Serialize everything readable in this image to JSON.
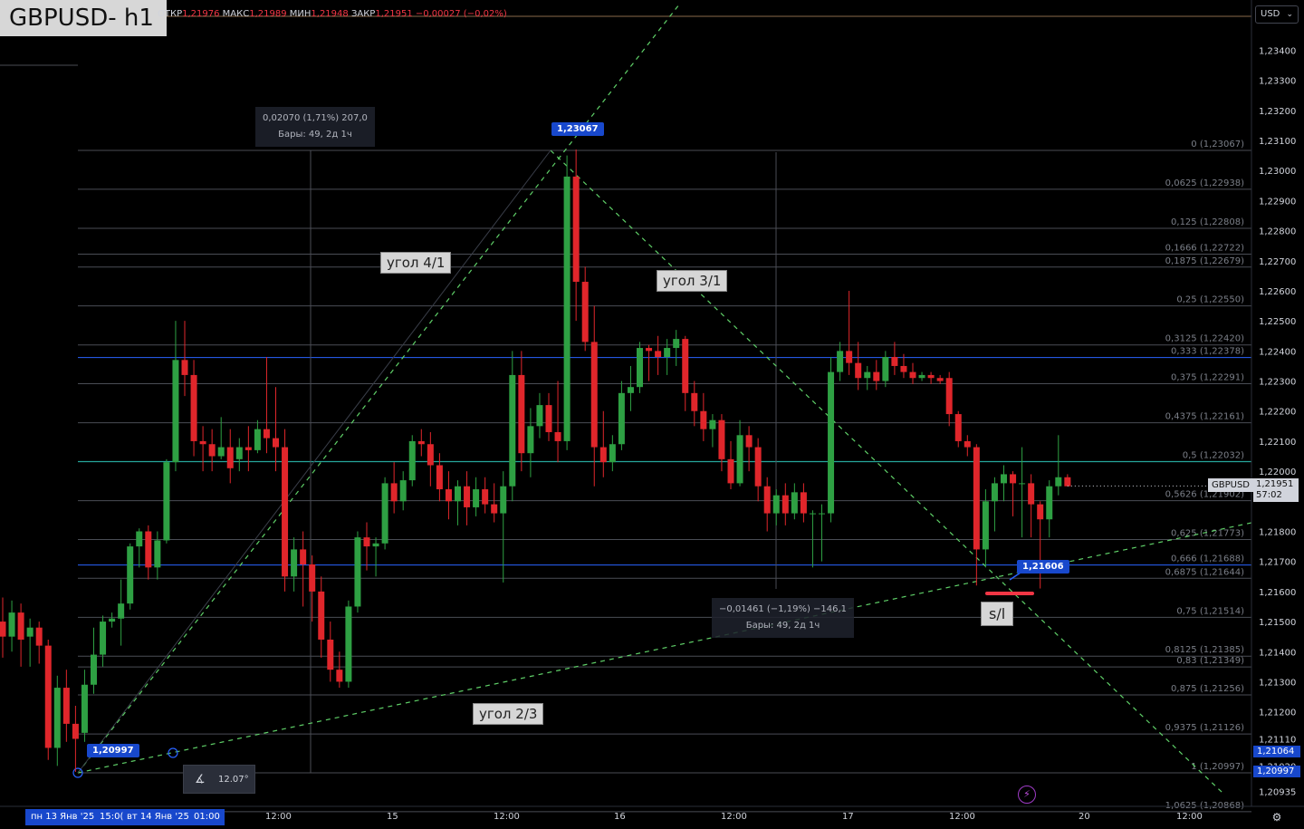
{
  "header": {
    "symbol_title": "GBPUSD- h1",
    "ohlc": [
      {
        "k": "ОТКР",
        "v": "1,21976"
      },
      {
        "k": "МАКС",
        "v": "1,21989"
      },
      {
        "k": "МИН",
        "v": "1,21948"
      },
      {
        "k": "ЗАКР",
        "v": "1,21951"
      },
      {
        "k": "",
        "v": "−0,00027 (−0,02%)"
      }
    ],
    "currency": "USD"
  },
  "price_axis_labels": [
    "1,23400",
    "1,23300",
    "1,23200",
    "1,23100",
    "1,23000",
    "1,22900",
    "1,22800",
    "1,22700",
    "1,22600",
    "1,22500",
    "1,22400",
    "1,22300",
    "1,22200",
    "1,22100",
    "1,22000",
    "1,21800",
    "1,21700",
    "1,21600",
    "1,21500",
    "1,21400",
    "1,21300",
    "1,21200",
    "1,21110",
    "1,21020",
    "1,20935"
  ],
  "fib_levels": [
    {
      "label": "0 (1,23067)",
      "price": 1.23067
    },
    {
      "label": "0,0625 (1,22938)",
      "price": 1.22938
    },
    {
      "label": "0,125 (1,22808)",
      "price": 1.22808
    },
    {
      "label": "0,1666 (1,22722)",
      "price": 1.22722
    },
    {
      "label": "0,1875 (1,22679)",
      "price": 1.22679
    },
    {
      "label": "0,25 (1,22550)",
      "price": 1.2255
    },
    {
      "label": "0,3125 (1,22420)",
      "price": 1.2242
    },
    {
      "label": "0,333 (1,22378)",
      "price": 1.22378
    },
    {
      "label": "0,375 (1,22291)",
      "price": 1.22291
    },
    {
      "label": "0,4375 (1,22161)",
      "price": 1.22161
    },
    {
      "label": "0,5 (1,22032)",
      "price": 1.22032
    },
    {
      "label": "0,5626 (1,21902)",
      "price": 1.21902
    },
    {
      "label": "0,625 (1,21773)",
      "price": 1.21773
    },
    {
      "label": "0,666 (1,21688)",
      "price": 1.21688
    },
    {
      "label": "0,6875 (1,21644)",
      "price": 1.21644
    },
    {
      "label": "0,75 (1,21514)",
      "price": 1.21514
    },
    {
      "label": "0,8125 (1,21385)",
      "price": 1.21385
    },
    {
      "label": "0,83 (1,21349)",
      "price": 1.21349
    },
    {
      "label": "0,875 (1,21256)",
      "price": 1.21256
    },
    {
      "label": "0,9375 (1,21126)",
      "price": 1.21126
    },
    {
      "label": "1 (1,20997)",
      "price": 1.20997
    },
    {
      "label": "1,0625 (1,20868)",
      "price": 1.20868
    }
  ],
  "annotations": {
    "angle_4_1": "угол 4/1",
    "angle_3_1": "угол 3/1",
    "angle_2_3": "угол 2/3",
    "sl": "s/l",
    "measure_up_line1": "0,02070 (1,71%) 207,0",
    "measure_up_line2": "Бары: 49, 2д 1ч",
    "measure_down_line1": "−0,01461 (−1,19%) −146,1",
    "measure_down_line2": "Бары: 49, 2д 1ч",
    "flag_high": "1,23067",
    "flag_low": "1,20997",
    "flag_mid": "1,21606",
    "angle_tool_value": "12.07°"
  },
  "axis_flags": {
    "upper": "1,21064",
    "lower": "1,20997"
  },
  "current_price": {
    "symbol": "GBPUSD",
    "price": "1,21951",
    "countdown": "57:02"
  },
  "time_axis": {
    "range_start": "пн 13 Янв '25",
    "range_start_time": "15:0(",
    "range_end": "вт 14 Янв '25",
    "range_end_time": "01:00",
    "ticks": [
      "12:00",
      "15",
      "12:00",
      "16",
      "12:00",
      "17",
      "12:00",
      "20",
      "12:00"
    ]
  },
  "colors": {
    "up": "#2ea043",
    "down": "#e0262b",
    "fib_line": "#5d606b",
    "fib_mid": "#26a69a",
    "trend": "#4caf50",
    "flag": "#1848cc"
  },
  "chart_data": {
    "type": "candlestick",
    "timeframe": "h1",
    "symbol": "GBPUSD",
    "ylim": [
      1.2088,
      1.2345
    ],
    "candles": [
      {
        "o": 1.215,
        "h": 1.2158,
        "c": 1.2145,
        "l": 1.2138
      },
      {
        "o": 1.2145,
        "h": 1.2157,
        "c": 1.2153,
        "l": 1.214
      },
      {
        "o": 1.2153,
        "h": 1.2156,
        "c": 1.2144,
        "l": 1.2135
      },
      {
        "o": 1.2145,
        "h": 1.2151,
        "c": 1.2148,
        "l": 1.2135
      },
      {
        "o": 1.2148,
        "h": 1.215,
        "c": 1.2142,
        "l": 1.2136
      },
      {
        "o": 1.2142,
        "h": 1.2144,
        "c": 1.2108,
        "l": 1.2104
      },
      {
        "o": 1.2108,
        "h": 1.2132,
        "c": 1.2128,
        "l": 1.2102
      },
      {
        "o": 1.2128,
        "h": 1.2134,
        "c": 1.2116,
        "l": 1.211
      },
      {
        "o": 1.2116,
        "h": 1.2122,
        "c": 1.2111,
        "l": 1.21
      },
      {
        "o": 1.2113,
        "h": 1.2134,
        "c": 1.2129,
        "l": 1.211
      },
      {
        "o": 1.2129,
        "h": 1.2148,
        "c": 1.2139,
        "l": 1.2126
      },
      {
        "o": 1.2139,
        "h": 1.2152,
        "c": 1.215,
        "l": 1.2135
      },
      {
        "o": 1.215,
        "h": 1.2153,
        "c": 1.2151,
        "l": 1.2148
      },
      {
        "o": 1.2151,
        "h": 1.2164,
        "c": 1.2156,
        "l": 1.2142
      },
      {
        "o": 1.2156,
        "h": 1.2176,
        "c": 1.2175,
        "l": 1.2154
      },
      {
        "o": 1.2175,
        "h": 1.2181,
        "c": 1.218,
        "l": 1.2168
      },
      {
        "o": 1.218,
        "h": 1.2182,
        "c": 1.2168,
        "l": 1.2164
      },
      {
        "o": 1.2168,
        "h": 1.218,
        "c": 1.2177,
        "l": 1.2164
      },
      {
        "o": 1.2177,
        "h": 1.2204,
        "c": 1.2203,
        "l": 1.2176
      },
      {
        "o": 1.2203,
        "h": 1.225,
        "c": 1.2237,
        "l": 1.22
      },
      {
        "o": 1.2237,
        "h": 1.225,
        "c": 1.2232,
        "l": 1.2225
      },
      {
        "o": 1.2232,
        "h": 1.2237,
        "c": 1.221,
        "l": 1.2205
      },
      {
        "o": 1.221,
        "h": 1.2215,
        "c": 1.2209,
        "l": 1.22
      },
      {
        "o": 1.2209,
        "h": 1.2214,
        "c": 1.2205,
        "l": 1.22
      },
      {
        "o": 1.2205,
        "h": 1.2218,
        "c": 1.2208,
        "l": 1.2204
      },
      {
        "o": 1.2208,
        "h": 1.2214,
        "c": 1.2201,
        "l": 1.2196
      },
      {
        "o": 1.2204,
        "h": 1.2211,
        "c": 1.2208,
        "l": 1.22
      },
      {
        "o": 1.2208,
        "h": 1.2215,
        "c": 1.2207,
        "l": 1.22
      },
      {
        "o": 1.2207,
        "h": 1.2217,
        "c": 1.2214,
        "l": 1.2206
      },
      {
        "o": 1.2214,
        "h": 1.2238,
        "c": 1.2211,
        "l": 1.2206
      },
      {
        "o": 1.2211,
        "h": 1.2228,
        "c": 1.2208,
        "l": 1.22
      },
      {
        "o": 1.2208,
        "h": 1.2214,
        "c": 1.2165,
        "l": 1.216
      },
      {
        "o": 1.2165,
        "h": 1.2178,
        "c": 1.2174,
        "l": 1.216
      },
      {
        "o": 1.2174,
        "h": 1.218,
        "c": 1.2169,
        "l": 1.2155
      },
      {
        "o": 1.2169,
        "h": 1.2172,
        "c": 1.216,
        "l": 1.215
      },
      {
        "o": 1.216,
        "h": 1.2165,
        "c": 1.2144,
        "l": 1.2138
      },
      {
        "o": 1.2144,
        "h": 1.215,
        "c": 1.2134,
        "l": 1.213
      },
      {
        "o": 1.2134,
        "h": 1.214,
        "c": 1.213,
        "l": 1.2128
      },
      {
        "o": 1.213,
        "h": 1.2157,
        "c": 1.2155,
        "l": 1.2128
      },
      {
        "o": 1.2155,
        "h": 1.218,
        "c": 1.2178,
        "l": 1.2153
      },
      {
        "o": 1.2178,
        "h": 1.2183,
        "c": 1.2175,
        "l": 1.2167
      },
      {
        "o": 1.2175,
        "h": 1.2178,
        "c": 1.2176,
        "l": 1.2165
      },
      {
        "o": 1.2176,
        "h": 1.2198,
        "c": 1.2196,
        "l": 1.2174
      },
      {
        "o": 1.2196,
        "h": 1.2203,
        "c": 1.219,
        "l": 1.2186
      },
      {
        "o": 1.219,
        "h": 1.22,
        "c": 1.2197,
        "l": 1.2187
      },
      {
        "o": 1.2197,
        "h": 1.2212,
        "c": 1.221,
        "l": 1.2195
      },
      {
        "o": 1.221,
        "h": 1.2214,
        "c": 1.2209,
        "l": 1.2205
      },
      {
        "o": 1.2209,
        "h": 1.2213,
        "c": 1.2202,
        "l": 1.2195
      },
      {
        "o": 1.2202,
        "h": 1.2206,
        "c": 1.2194,
        "l": 1.219
      },
      {
        "o": 1.2194,
        "h": 1.22,
        "c": 1.219,
        "l": 1.2184
      },
      {
        "o": 1.219,
        "h": 1.2197,
        "c": 1.2195,
        "l": 1.2182
      },
      {
        "o": 1.2195,
        "h": 1.22,
        "c": 1.2188,
        "l": 1.2182
      },
      {
        "o": 1.2188,
        "h": 1.2198,
        "c": 1.2194,
        "l": 1.2185
      },
      {
        "o": 1.2194,
        "h": 1.2198,
        "c": 1.2189,
        "l": 1.2186
      },
      {
        "o": 1.2189,
        "h": 1.2196,
        "c": 1.2186,
        "l": 1.2183
      },
      {
        "o": 1.2186,
        "h": 1.22,
        "c": 1.2195,
        "l": 1.2163
      },
      {
        "o": 1.2195,
        "h": 1.224,
        "c": 1.2232,
        "l": 1.219
      },
      {
        "o": 1.2232,
        "h": 1.224,
        "c": 1.2206,
        "l": 1.22
      },
      {
        "o": 1.2206,
        "h": 1.2221,
        "c": 1.2215,
        "l": 1.2198
      },
      {
        "o": 1.2215,
        "h": 1.2226,
        "c": 1.2222,
        "l": 1.2211
      },
      {
        "o": 1.2222,
        "h": 1.2226,
        "c": 1.2213,
        "l": 1.221
      },
      {
        "o": 1.2213,
        "h": 1.223,
        "c": 1.221,
        "l": 1.2203
      },
      {
        "o": 1.221,
        "h": 1.2305,
        "c": 1.2298,
        "l": 1.2207
      },
      {
        "o": 1.2298,
        "h": 1.2307,
        "c": 1.2263,
        "l": 1.225
      },
      {
        "o": 1.2263,
        "h": 1.2268,
        "c": 1.2243,
        "l": 1.224
      },
      {
        "o": 1.2243,
        "h": 1.2255,
        "c": 1.2208,
        "l": 1.2195
      },
      {
        "o": 1.2208,
        "h": 1.222,
        "c": 1.2203,
        "l": 1.2198
      },
      {
        "o": 1.2203,
        "h": 1.2212,
        "c": 1.2209,
        "l": 1.22
      },
      {
        "o": 1.2209,
        "h": 1.223,
        "c": 1.2226,
        "l": 1.2207
      },
      {
        "o": 1.2226,
        "h": 1.2235,
        "c": 1.2228,
        "l": 1.222
      },
      {
        "o": 1.2228,
        "h": 1.2243,
        "c": 1.2241,
        "l": 1.2226
      },
      {
        "o": 1.2241,
        "h": 1.2242,
        "c": 1.224,
        "l": 1.223
      },
      {
        "o": 1.224,
        "h": 1.2245,
        "c": 1.2238,
        "l": 1.2232
      },
      {
        "o": 1.2238,
        "h": 1.2244,
        "c": 1.2241,
        "l": 1.2232
      },
      {
        "o": 1.2241,
        "h": 1.2247,
        "c": 1.2244,
        "l": 1.2235
      },
      {
        "o": 1.2244,
        "h": 1.2245,
        "c": 1.2226,
        "l": 1.222
      },
      {
        "o": 1.2226,
        "h": 1.223,
        "c": 1.222,
        "l": 1.2215
      },
      {
        "o": 1.222,
        "h": 1.2226,
        "c": 1.2214,
        "l": 1.221
      },
      {
        "o": 1.2214,
        "h": 1.2219,
        "c": 1.2217,
        "l": 1.2208
      },
      {
        "o": 1.2217,
        "h": 1.2219,
        "c": 1.2204,
        "l": 1.22
      },
      {
        "o": 1.2204,
        "h": 1.221,
        "c": 1.2196,
        "l": 1.2194
      },
      {
        "o": 1.2196,
        "h": 1.2217,
        "c": 1.2212,
        "l": 1.2195
      },
      {
        "o": 1.2212,
        "h": 1.2215,
        "c": 1.2208,
        "l": 1.22
      },
      {
        "o": 1.2208,
        "h": 1.2211,
        "c": 1.2195,
        "l": 1.219
      },
      {
        "o": 1.2195,
        "h": 1.2198,
        "c": 1.2186,
        "l": 1.218
      },
      {
        "o": 1.2186,
        "h": 1.2194,
        "c": 1.2192,
        "l": 1.2182
      },
      {
        "o": 1.2192,
        "h": 1.2196,
        "c": 1.2186,
        "l": 1.2182
      },
      {
        "o": 1.2186,
        "h": 1.2196,
        "c": 1.2193,
        "l": 1.2184
      },
      {
        "o": 1.2193,
        "h": 1.2196,
        "c": 1.2186,
        "l": 1.2183
      },
      {
        "o": 1.2186,
        "h": 1.2187,
        "c": 1.2186,
        "l": 1.2168
      },
      {
        "o": 1.2186,
        "h": 1.2189,
        "c": 1.2186,
        "l": 1.217
      },
      {
        "o": 1.2186,
        "h": 1.2238,
        "c": 1.2233,
        "l": 1.2183
      },
      {
        "o": 1.2233,
        "h": 1.2243,
        "c": 1.224,
        "l": 1.223
      },
      {
        "o": 1.224,
        "h": 1.226,
        "c": 1.2236,
        "l": 1.2232
      },
      {
        "o": 1.2236,
        "h": 1.2243,
        "c": 1.2231,
        "l": 1.2227
      },
      {
        "o": 1.2231,
        "h": 1.2235,
        "c": 1.2233,
        "l": 1.2227
      },
      {
        "o": 1.2233,
        "h": 1.2237,
        "c": 1.223,
        "l": 1.2227
      },
      {
        "o": 1.223,
        "h": 1.224,
        "c": 1.2238,
        "l": 1.2228
      },
      {
        "o": 1.2238,
        "h": 1.2243,
        "c": 1.2235,
        "l": 1.2232
      },
      {
        "o": 1.2235,
        "h": 1.2239,
        "c": 1.2233,
        "l": 1.2231
      },
      {
        "o": 1.2233,
        "h": 1.2236,
        "c": 1.2231,
        "l": 1.2229
      },
      {
        "o": 1.2231,
        "h": 1.2233,
        "c": 1.2232,
        "l": 1.223
      },
      {
        "o": 1.2232,
        "h": 1.2233,
        "c": 1.2231,
        "l": 1.2229
      },
      {
        "o": 1.2231,
        "h": 1.2232,
        "c": 1.223,
        "l": 1.2229
      },
      {
        "o": 1.2231,
        "h": 1.2233,
        "c": 1.2219,
        "l": 1.2215
      },
      {
        "o": 1.2219,
        "h": 1.222,
        "c": 1.221,
        "l": 1.2208
      },
      {
        "o": 1.221,
        "h": 1.2212,
        "c": 1.2208,
        "l": 1.2205
      },
      {
        "o": 1.2208,
        "h": 1.2209,
        "c": 1.2174,
        "l": 1.2162
      },
      {
        "o": 1.2174,
        "h": 1.2194,
        "c": 1.219,
        "l": 1.2168
      },
      {
        "o": 1.219,
        "h": 1.2198,
        "c": 1.2196,
        "l": 1.218
      },
      {
        "o": 1.2196,
        "h": 1.2202,
        "c": 1.2199,
        "l": 1.219
      },
      {
        "o": 1.2199,
        "h": 1.22,
        "c": 1.2196,
        "l": 1.2185
      },
      {
        "o": 1.2196,
        "h": 1.2208,
        "c": 1.2196,
        "l": 1.2178
      },
      {
        "o": 1.2196,
        "h": 1.2199,
        "c": 1.2189,
        "l": 1.2178
      },
      {
        "o": 1.2189,
        "h": 1.219,
        "c": 1.2184,
        "l": 1.2161
      },
      {
        "o": 1.2184,
        "h": 1.2197,
        "c": 1.2195,
        "l": 1.2178
      },
      {
        "o": 1.2195,
        "h": 1.2212,
        "c": 1.2198,
        "l": 1.2192
      },
      {
        "o": 1.2198,
        "h": 1.2199,
        "c": 1.2195,
        "l": 1.2195
      }
    ]
  }
}
